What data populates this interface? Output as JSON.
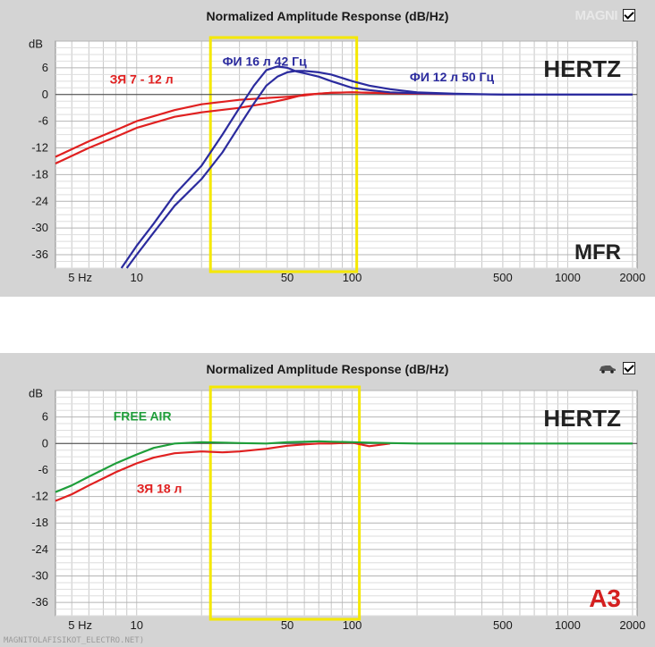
{
  "chart_data": [
    {
      "type": "line",
      "title": "Normalized Amplitude Response (dB/Hz)",
      "ylabel": "dB",
      "xscale": "log",
      "xlim": [
        4.2,
        2100
      ],
      "ylim": [
        -39,
        12
      ],
      "y_ticks": [
        "6",
        "0",
        "-6",
        "-12",
        "-18",
        "-24",
        "-30",
        "-36"
      ],
      "y_tick_values": [
        6,
        0,
        -6,
        -12,
        -18,
        -24,
        -30,
        -36
      ],
      "x_ticks": [
        "5 Hz",
        "10",
        "50",
        "100",
        "500",
        "1000",
        "2000"
      ],
      "x_tick_values": [
        5,
        10,
        50,
        100,
        500,
        1000,
        2000
      ],
      "grid": true,
      "brand_label": "HERTZ",
      "corner_label": "MFR",
      "highlight_range_hz": [
        22,
        105
      ],
      "highlight_color": "#f5e800",
      "annotations": [
        {
          "text": "ФИ 16 л 42 Гц",
          "color": "#2b2b9e",
          "at_hz": 25,
          "at_db": 6.5
        },
        {
          "text": "ФИ 12 л 50 Гц",
          "color": "#2b2b9e",
          "at_hz": 185,
          "at_db": 3.0
        },
        {
          "text": "ЗЯ 7 - 12 л",
          "color": "#e02020",
          "at_hz": 7.5,
          "at_db": 2.5
        }
      ],
      "series": [
        {
          "color": "#e02020",
          "x": [
            4.2,
            6,
            8,
            10,
            15,
            20,
            30,
            40,
            50,
            60,
            70,
            80,
            100,
            150,
            200,
            300
          ],
          "y": [
            -14,
            -10.5,
            -8,
            -6,
            -3.5,
            -2.2,
            -1.2,
            -0.8,
            -0.5,
            -0.2,
            0.2,
            0.4,
            0.5,
            0.3,
            0.2,
            0.1
          ]
        },
        {
          "color": "#e02020",
          "x": [
            4.2,
            6,
            8,
            10,
            15,
            20,
            30,
            40,
            50,
            60,
            70,
            80,
            100,
            150,
            200,
            300
          ],
          "y": [
            -15.5,
            -12,
            -9.5,
            -7.5,
            -5,
            -4,
            -3,
            -2,
            -1,
            0,
            0.2,
            0.4,
            0.5,
            0.3,
            0.2,
            0.1
          ]
        },
        {
          "color": "#2b2b9e",
          "x": [
            8.5,
            10,
            12,
            15,
            20,
            25,
            30,
            35,
            40,
            45,
            50,
            55,
            60,
            70,
            80,
            100,
            120,
            150,
            200,
            300,
            500,
            700,
            1000,
            2000
          ],
          "y": [
            -39,
            -34,
            -29,
            -22.5,
            -16,
            -9,
            -3,
            2,
            5.5,
            6.3,
            6,
            5.2,
            4.8,
            4,
            3,
            1.5,
            1,
            0.5,
            0.3,
            0.1,
            0,
            0,
            0,
            0
          ]
        },
        {
          "color": "#2b2b9e",
          "x": [
            9,
            10,
            12,
            15,
            20,
            25,
            30,
            35,
            40,
            45,
            50,
            55,
            60,
            70,
            80,
            100,
            120,
            150,
            200,
            300,
            500,
            700,
            1000,
            2000
          ],
          "y": [
            -39,
            -36,
            -31,
            -25,
            -19,
            -13,
            -7,
            -2,
            2,
            4,
            5,
            5.3,
            5.3,
            5,
            4.5,
            3,
            2,
            1.2,
            0.5,
            0.2,
            0,
            0,
            0,
            0
          ]
        }
      ]
    },
    {
      "type": "line",
      "title": "Normalized Amplitude Response (dB/Hz)",
      "ylabel": "dB",
      "xscale": "log",
      "xlim": [
        4.2,
        2100
      ],
      "ylim": [
        -39,
        12
      ],
      "y_ticks": [
        "6",
        "0",
        "-6",
        "-12",
        "-18",
        "-24",
        "-30",
        "-36"
      ],
      "y_tick_values": [
        6,
        0,
        -6,
        -12,
        -18,
        -24,
        -30,
        -36
      ],
      "x_ticks": [
        "5 Hz",
        "10",
        "50",
        "100",
        "500",
        "1000",
        "2000"
      ],
      "x_tick_values": [
        5,
        10,
        50,
        100,
        500,
        1000,
        2000
      ],
      "grid": true,
      "brand_label": "HERTZ",
      "corner_label": "A3",
      "highlight_range_hz": [
        22,
        108
      ],
      "highlight_color": "#f5e800",
      "annotations": [
        {
          "text": "FREE AIR",
          "color": "#1f9e3a",
          "at_hz": 7.8,
          "at_db": 5.2
        },
        {
          "text": "ЗЯ 18 л",
          "color": "#e02020",
          "at_hz": 10,
          "at_db": -11.2
        }
      ],
      "series": [
        {
          "color": "#e02020",
          "x": [
            4.2,
            5,
            6,
            8,
            10,
            12,
            15,
            20,
            25,
            30,
            40,
            50,
            60,
            70,
            80,
            100,
            120,
            150
          ],
          "y": [
            -13,
            -11.5,
            -9.5,
            -6.5,
            -4.5,
            -3.2,
            -2.2,
            -1.8,
            -2,
            -1.8,
            -1.2,
            -0.5,
            -0.2,
            0,
            0,
            0.2,
            -0.6,
            0
          ]
        },
        {
          "color": "#1f9e3a",
          "x": [
            4.2,
            5,
            6,
            8,
            10,
            12,
            15,
            20,
            25,
            30,
            40,
            50,
            60,
            70,
            80,
            100,
            120,
            150,
            200,
            300,
            500,
            700,
            1000,
            2000
          ],
          "y": [
            -11,
            -9.5,
            -7.5,
            -4.5,
            -2.5,
            -1,
            0,
            0.3,
            0.2,
            0.1,
            0,
            0.3,
            0.4,
            0.5,
            0.4,
            0.3,
            0.2,
            0.1,
            0,
            0,
            0,
            0,
            0,
            0
          ]
        }
      ]
    }
  ],
  "watermark_top": "MAGNI",
  "footer_text": "MAGNITOLAFISIKOT_ELECTRO.NET)",
  "colors": {
    "panel_bg": "#d4d4d4",
    "plot_bg": "#ffffff",
    "grid": "#c8c8c8",
    "highlight": "#f5e800",
    "a3_red": "#d42020"
  },
  "icons": [
    "checkbox-checked-icon",
    "car-icon"
  ]
}
